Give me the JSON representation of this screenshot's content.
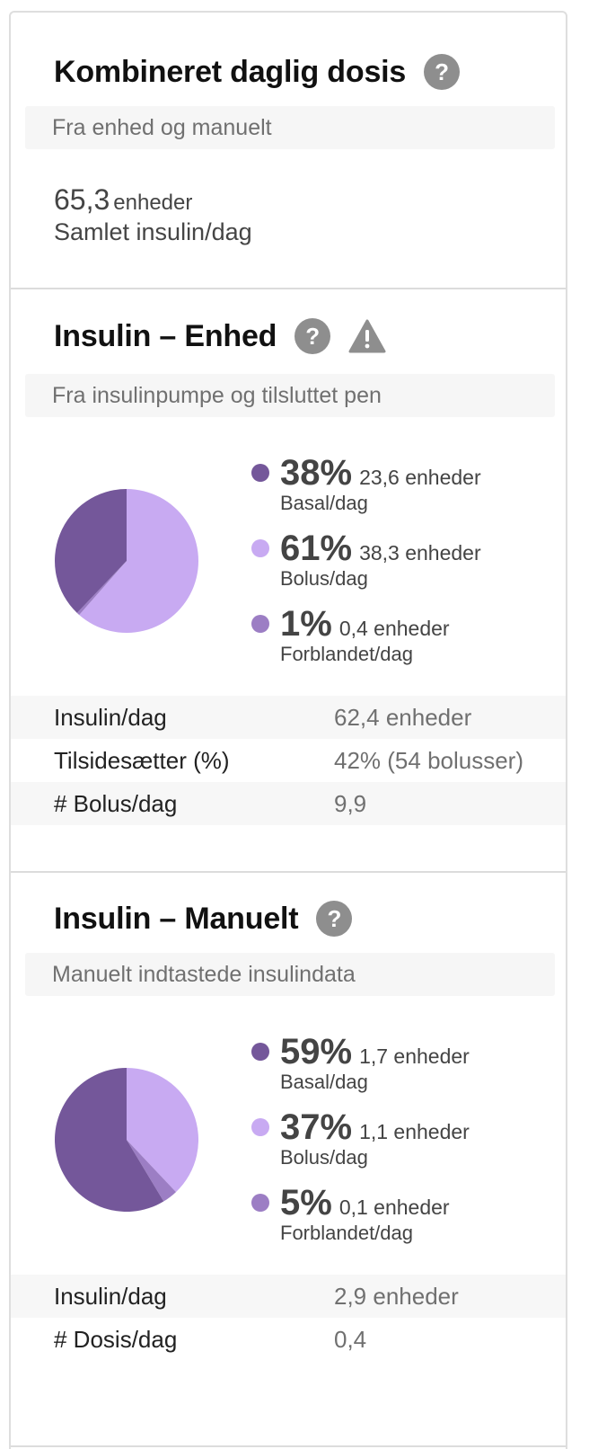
{
  "colors": {
    "basal": "#74579a",
    "bolus": "#c8aaf2",
    "mixed": "#9c7ec4",
    "help_icon_bg": "#8e8e8e",
    "subtitle_bg": "#f6f6f6"
  },
  "combined": {
    "title": "Kombineret daglig dosis",
    "help_icon": "question-circle-icon",
    "subtitle": "Fra enhed og manuelt",
    "total_value": "65,3",
    "total_unit": "enheder",
    "total_label": "Samlet insulin/dag"
  },
  "device": {
    "title": "Insulin – Enhed",
    "help_icon": "question-circle-icon",
    "warning_icon": "warning-triangle-icon",
    "subtitle": "Fra insulinpumpe og tilsluttet pen",
    "chart_data": {
      "type": "pie",
      "slices": [
        {
          "label": "Basal/dag",
          "percent": 38,
          "amount": "23,6 enheder",
          "value": 23.6,
          "color_key": "basal"
        },
        {
          "label": "Bolus/dag",
          "percent": 61,
          "amount": "38,3 enheder",
          "value": 38.3,
          "color_key": "bolus"
        },
        {
          "label": "Forblandet/dag",
          "percent": 1,
          "amount": "0,4 enheder",
          "value": 0.4,
          "color_key": "mixed"
        }
      ]
    },
    "legend": [
      {
        "pct": "38%",
        "amount": "23,6 enheder",
        "label": "Basal/dag"
      },
      {
        "pct": "61%",
        "amount": "38,3 enheder",
        "label": "Bolus/dag"
      },
      {
        "pct": "1%",
        "amount": "0,4 enheder",
        "label": "Forblandet/dag"
      }
    ],
    "stats": [
      {
        "key": "Insulin/dag",
        "value": "62,4 enheder"
      },
      {
        "key": "Tilsidesætter (%)",
        "value": "42% (54 bolusser)"
      },
      {
        "key": "# Bolus/dag",
        "value": "9,9"
      }
    ]
  },
  "manual": {
    "title": "Insulin – Manuelt",
    "help_icon": "question-circle-icon",
    "subtitle": "Manuelt indtastede insulindata",
    "chart_data": {
      "type": "pie",
      "slices": [
        {
          "label": "Basal/dag",
          "percent": 59,
          "amount": "1,7 enheder",
          "value": 1.7,
          "color_key": "basal"
        },
        {
          "label": "Bolus/dag",
          "percent": 37,
          "amount": "1,1 enheder",
          "value": 1.1,
          "color_key": "bolus"
        },
        {
          "label": "Forblandet/dag",
          "percent": 5,
          "amount": "0,1 enheder",
          "value": 0.1,
          "color_key": "mixed"
        }
      ]
    },
    "legend": [
      {
        "pct": "59%",
        "amount": "1,7 enheder",
        "label": "Basal/dag"
      },
      {
        "pct": "37%",
        "amount": "1,1 enheder",
        "label": "Bolus/dag"
      },
      {
        "pct": "5%",
        "amount": "0,1 enheder",
        "label": "Forblandet/dag"
      }
    ],
    "stats": [
      {
        "key": "Insulin/dag",
        "value": "2,9 enheder"
      },
      {
        "key": "# Dosis/dag",
        "value": "0,4"
      }
    ]
  }
}
